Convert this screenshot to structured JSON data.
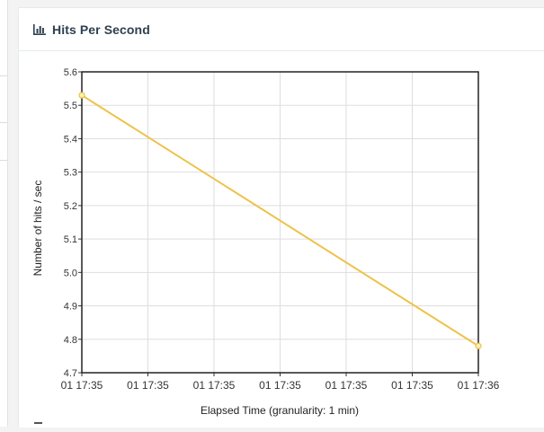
{
  "panel": {
    "title": "Hits Per Second",
    "icon": "bar-chart-icon"
  },
  "chart_data": {
    "type": "line",
    "title": "Hits Per Second",
    "xlabel": "Elapsed Time (granularity: 1 min)",
    "ylabel": "Number of hits / sec",
    "x_ticks": [
      "01 17:35",
      "01 17:35",
      "01 17:35",
      "01 17:35",
      "01 17:35",
      "01 17:35",
      "01 17:36"
    ],
    "ylim": [
      4.7,
      5.6
    ],
    "y_ticks": [
      "4.7",
      "4.8",
      "4.9",
      "5.0",
      "5.1",
      "5.2",
      "5.3",
      "5.4",
      "5.5",
      "5.6"
    ],
    "grid": true,
    "series": [
      {
        "color": "#eec249",
        "points": [
          {
            "x": 0,
            "y": 5.53
          },
          {
            "x": 6,
            "y": 4.78
          }
        ]
      }
    ]
  }
}
